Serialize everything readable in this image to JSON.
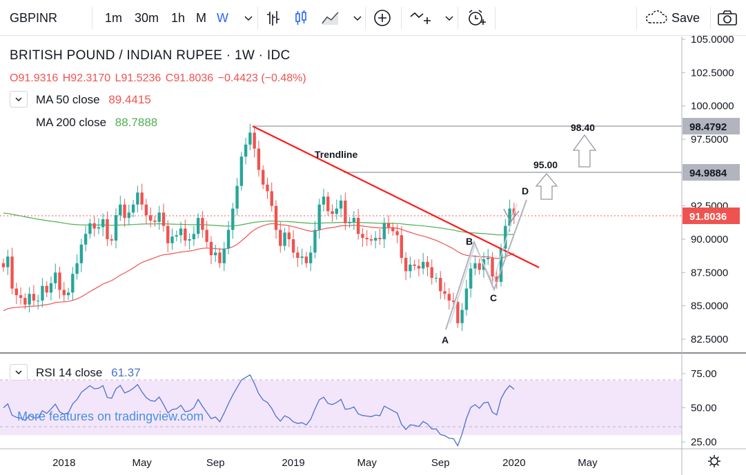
{
  "toolbar": {
    "symbol": "GBPINR",
    "intervals": [
      "1m",
      "30m",
      "1h",
      "M",
      "W"
    ],
    "active_interval": "W",
    "save_label": "Save"
  },
  "legend": {
    "title": "BRITISH POUND / INDIAN RUPEE · 1W · IDC",
    "open": "O91.9316",
    "high": "H92.3170",
    "low": "L91.5236",
    "close": "C91.8036",
    "change": "−0.4423 (−0.48%)",
    "ma50_label": "MA  50 close",
    "ma50_value": "89.4415",
    "ma200_label": "MA  200 close",
    "ma200_value": "88.7888",
    "rsi_label": "RSI  14 close",
    "rsi_value": "61.37"
  },
  "promo_text": "More features on tradingview.com",
  "colors": {
    "up": "#26a69a",
    "down": "#ef5350",
    "ma50": "#ef5350",
    "ma200": "#4caf50",
    "rsi": "#4a6fd1",
    "rsi_band": "#f3e6fb",
    "trendline": "#ff1a1a",
    "accent": "#2962ff"
  },
  "chart_data": {
    "type": "candlestick",
    "title": "BRITISH POUND / INDIAN RUPEE · 1W · IDC",
    "ylim": [
      82.5,
      105
    ],
    "y_ticks": [
      "105.0000",
      "102.5000",
      "100.0000",
      "97.5000",
      "92.5000",
      "90.0000",
      "87.5000",
      "85.0000",
      "82.5000"
    ],
    "x_ticks": [
      "2018",
      "May",
      "Sep",
      "2019",
      "May",
      "Sep",
      "2020",
      "May"
    ],
    "last_price": "91.8036",
    "level_labels": [
      "98.4792",
      "94.9884"
    ],
    "closes": [
      87.9,
      88.7,
      86.3,
      85.8,
      85.6,
      85.1,
      85.9,
      85.4,
      85.4,
      86.5,
      86.0,
      86.7,
      87.5,
      86.2,
      85.8,
      86.0,
      87.4,
      88.2,
      89.6,
      90.4,
      91.2,
      90.8,
      90.9,
      91.5,
      90.0,
      89.9,
      91.8,
      92.6,
      91.6,
      92.0,
      92.6,
      93.5,
      92.6,
      91.8,
      91.4,
      91.3,
      92.0,
      91.0,
      89.7,
      90.2,
      90.3,
      90.8,
      89.9,
      90.0,
      90.4,
      91.6,
      90.7,
      89.8,
      88.8,
      89.0,
      88.2,
      89.3,
      90.7,
      92.3,
      94.0,
      96.2,
      97.1,
      98.0,
      96.8,
      95.2,
      94.1,
      93.6,
      92.5,
      90.7,
      89.5,
      90.5,
      90.0,
      89.0,
      88.6,
      88.7,
      88.2,
      89.0,
      90.7,
      92.6,
      93.2,
      92.1,
      91.9,
      92.3,
      92.9,
      91.2,
      91.3,
      91.6,
      90.4,
      90.1,
      90.0,
      89.9,
      90.1,
      90.0,
      91.2,
      90.9,
      90.6,
      90.3,
      88.6,
      87.6,
      88.1,
      88.0,
      87.8,
      88.3,
      87.9,
      87.1,
      87.1,
      86.1,
      85.9,
      85.4,
      85.3,
      83.7,
      84.7,
      86.3,
      87.8,
      88.2,
      87.7,
      88.5,
      88.6,
      87.2,
      86.8,
      89.3,
      91.0,
      92.3,
      91.8
    ],
    "ma50_close": "89.4415",
    "ma200_close": "88.7888",
    "rsi": {
      "period": 14,
      "last": "61.37",
      "y_ticks": [
        "75.00",
        "50.00",
        "25.00"
      ],
      "band": [
        30,
        70
      ]
    },
    "annotations": [
      "Trendline",
      "98.40",
      "95.00",
      "A",
      "B",
      "C",
      "D"
    ]
  }
}
